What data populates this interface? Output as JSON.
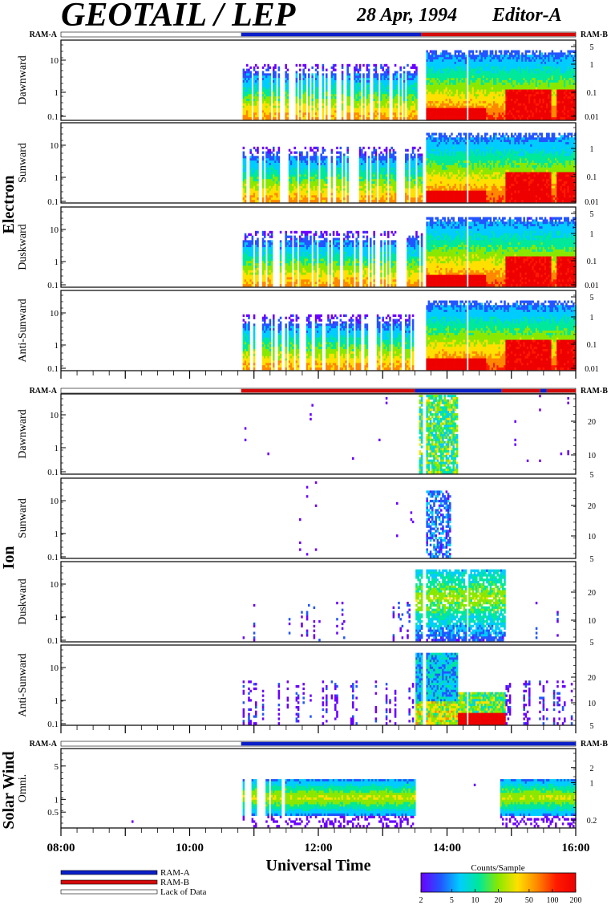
{
  "title": {
    "main": "GEOTAIL / LEP",
    "date": "28 Apr, 1994",
    "editor": "Editor-A"
  },
  "ram_labels": {
    "left": "RAM-A",
    "right": "RAM-B"
  },
  "colors": {
    "ram_a": "#0a1fc8",
    "ram_b": "#d40a0a",
    "lack": "#ffffff",
    "colorbar": [
      "#6a00ff",
      "#2255ff",
      "#00ccff",
      "#00e89a",
      "#8ae800",
      "#ffe000",
      "#ff8800",
      "#ff1a00",
      "#ee0000"
    ]
  },
  "groups": [
    {
      "label": "Electron"
    },
    {
      "label": "Ion"
    },
    {
      "label": "Solar Wind"
    }
  ],
  "x_axis": {
    "label": "Universal Time",
    "ticks": [
      "08:00",
      "10:00",
      "12:00",
      "14:00",
      "16:00"
    ]
  },
  "legend": {
    "items": [
      {
        "label": "RAM-A",
        "color": "#0a1fc8"
      },
      {
        "label": "RAM-B",
        "color": "#d40a0a"
      },
      {
        "label": "Lack of Data",
        "color": "#ffffff"
      }
    ]
  },
  "colorbar": {
    "title": "Counts/Sample",
    "ticks": [
      "2",
      "5",
      "10",
      "20",
      "50",
      "100",
      "200"
    ]
  },
  "chart_data": {
    "type": "heatmap",
    "x_range_hours": [
      8,
      16
    ],
    "ram_bars": [
      {
        "segments": [
          {
            "from": 8.0,
            "to": 10.8,
            "mode": "none"
          },
          {
            "from": 10.8,
            "to": 13.6,
            "mode": "A"
          },
          {
            "from": 13.6,
            "to": 16.0,
            "mode": "B"
          }
        ]
      },
      {
        "segments": [
          {
            "from": 8.0,
            "to": 10.8,
            "mode": "none"
          },
          {
            "from": 10.8,
            "to": 13.5,
            "mode": "B"
          },
          {
            "from": 13.5,
            "to": 14.85,
            "mode": "A"
          },
          {
            "from": 14.85,
            "to": 15.45,
            "mode": "B"
          },
          {
            "from": 15.45,
            "to": 15.55,
            "mode": "A"
          },
          {
            "from": 15.55,
            "to": 16.0,
            "mode": "B"
          }
        ]
      },
      {
        "segments": [
          {
            "from": 8.0,
            "to": 10.8,
            "mode": "none"
          },
          {
            "from": 10.8,
            "to": 16.0,
            "mode": "A"
          }
        ]
      }
    ],
    "panels": [
      {
        "group": 0,
        "name": "Dawnward",
        "y_ticks": [
          "10",
          "1",
          "0.1"
        ],
        "y_tick_pos": [
          0.75,
          0.35,
          0.05
        ],
        "r_ticks": [
          "5",
          "1",
          "0.1",
          "0.01"
        ],
        "r_tick_pos": [
          0.92,
          0.7,
          0.35,
          0.05
        ],
        "type": "electron"
      },
      {
        "group": 0,
        "name": "Sunward",
        "y_ticks": [
          "10",
          "1",
          "0.1"
        ],
        "y_tick_pos": [
          0.72,
          0.32,
          0.02
        ],
        "r_ticks": [
          "1",
          "0.1",
          "0.01"
        ],
        "r_tick_pos": [
          0.68,
          0.33,
          0.02
        ],
        "type": "electron"
      },
      {
        "group": 0,
        "name": "Duskward",
        "y_ticks": [
          "10",
          "1",
          "0.1"
        ],
        "y_tick_pos": [
          0.72,
          0.32,
          0.03
        ],
        "r_ticks": [
          "5",
          "1",
          "0.1",
          "0.01"
        ],
        "r_tick_pos": [
          0.92,
          0.67,
          0.33,
          0.03
        ],
        "type": "electron"
      },
      {
        "group": 0,
        "name": "Anti-Sunward",
        "y_ticks": [
          "10",
          "1",
          "0.1"
        ],
        "y_tick_pos": [
          0.72,
          0.32,
          0.03
        ],
        "r_ticks": [
          "5",
          "1",
          "0.1",
          "0.01"
        ],
        "r_tick_pos": [
          0.92,
          0.67,
          0.33,
          0.03
        ],
        "type": "electron"
      },
      {
        "group": 1,
        "name": "Dawnward",
        "y_ticks": [
          "10",
          "1",
          "0.1"
        ],
        "y_tick_pos": [
          0.74,
          0.33,
          0.03
        ],
        "r_ticks": [
          "20",
          "10",
          "5"
        ],
        "r_tick_pos": [
          0.66,
          0.24,
          0.0
        ],
        "type": "ion_dawn"
      },
      {
        "group": 1,
        "name": "Sunward",
        "y_ticks": [
          "10",
          "1",
          "0.1"
        ],
        "y_tick_pos": [
          0.72,
          0.31,
          0.02
        ],
        "r_ticks": [
          "20",
          "10",
          "5"
        ],
        "r_tick_pos": [
          0.66,
          0.28,
          0.0
        ],
        "type": "ion_sun"
      },
      {
        "group": 1,
        "name": "Duskward",
        "y_ticks": [
          "10",
          "1",
          "0.1"
        ],
        "y_tick_pos": [
          0.72,
          0.31,
          0.02
        ],
        "r_ticks": [
          "20",
          "10",
          "5"
        ],
        "r_tick_pos": [
          0.62,
          0.27,
          0.0
        ],
        "type": "ion_dusk"
      },
      {
        "group": 1,
        "name": "Anti-Sunward",
        "y_ticks": [
          "10",
          "1",
          "0.1"
        ],
        "y_tick_pos": [
          0.72,
          0.31,
          0.02
        ],
        "r_ticks": [
          "20",
          "10",
          "5"
        ],
        "r_tick_pos": [
          0.6,
          0.28,
          0.0
        ],
        "type": "ion_anti"
      },
      {
        "group": 2,
        "name": "Omni.",
        "y_ticks": [
          "5",
          "1",
          "0.5"
        ],
        "y_tick_pos": [
          0.78,
          0.36,
          0.2
        ],
        "r_ticks": [
          "2",
          "1",
          "0.2"
        ],
        "r_tick_pos": [
          0.76,
          0.57,
          0.1
        ],
        "type": "solar"
      }
    ]
  }
}
